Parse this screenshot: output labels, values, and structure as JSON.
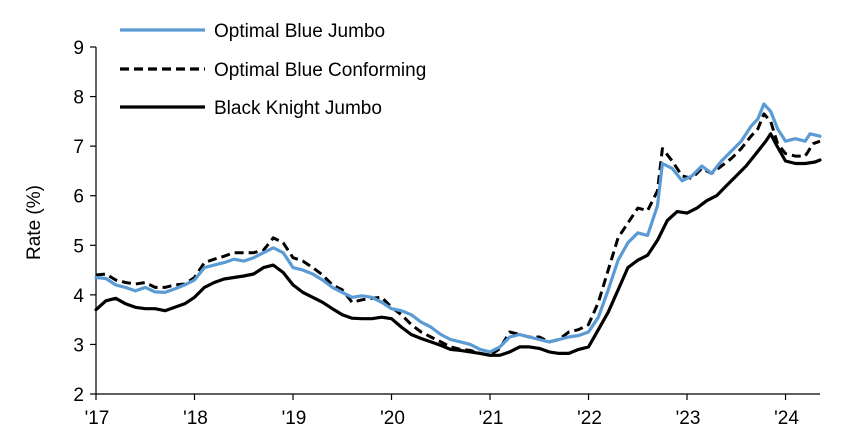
{
  "chart_data": {
    "type": "line",
    "title": "",
    "xlabel": "",
    "ylabel": "Rate (%)",
    "xlim": [
      2017.0,
      2024.35
    ],
    "ylim": [
      2,
      9
    ],
    "yticks": [
      2,
      3,
      4,
      5,
      6,
      7,
      8,
      9
    ],
    "xticks": [
      {
        "value": 2017,
        "label": "'17"
      },
      {
        "value": 2018,
        "label": "'18"
      },
      {
        "value": 2019,
        "label": "'19"
      },
      {
        "value": 2020,
        "label": "'20"
      },
      {
        "value": 2021,
        "label": "'21"
      },
      {
        "value": 2022,
        "label": "'22"
      },
      {
        "value": 2023,
        "label": "'23"
      },
      {
        "value": 2024,
        "label": "'24"
      }
    ],
    "grid": false,
    "legend_position": "top-left",
    "series": [
      {
        "name": "Optimal Blue Jumbo",
        "color": "#5b9bd5",
        "style": "solid",
        "points": [
          [
            2017.0,
            4.35
          ],
          [
            2017.1,
            4.33
          ],
          [
            2017.2,
            4.2
          ],
          [
            2017.3,
            4.15
          ],
          [
            2017.4,
            4.08
          ],
          [
            2017.5,
            4.15
          ],
          [
            2017.6,
            4.06
          ],
          [
            2017.7,
            4.05
          ],
          [
            2017.8,
            4.12
          ],
          [
            2017.9,
            4.2
          ],
          [
            2018.0,
            4.3
          ],
          [
            2018.1,
            4.55
          ],
          [
            2018.2,
            4.6
          ],
          [
            2018.3,
            4.65
          ],
          [
            2018.4,
            4.72
          ],
          [
            2018.5,
            4.68
          ],
          [
            2018.6,
            4.75
          ],
          [
            2018.7,
            4.85
          ],
          [
            2018.8,
            4.95
          ],
          [
            2018.9,
            4.85
          ],
          [
            2019.0,
            4.55
          ],
          [
            2019.1,
            4.5
          ],
          [
            2019.2,
            4.42
          ],
          [
            2019.3,
            4.3
          ],
          [
            2019.4,
            4.15
          ],
          [
            2019.5,
            4.05
          ],
          [
            2019.6,
            3.95
          ],
          [
            2019.7,
            3.98
          ],
          [
            2019.8,
            3.95
          ],
          [
            2019.9,
            3.85
          ],
          [
            2020.0,
            3.72
          ],
          [
            2020.1,
            3.68
          ],
          [
            2020.2,
            3.6
          ],
          [
            2020.3,
            3.45
          ],
          [
            2020.4,
            3.35
          ],
          [
            2020.5,
            3.2
          ],
          [
            2020.6,
            3.1
          ],
          [
            2020.7,
            3.05
          ],
          [
            2020.8,
            3.0
          ],
          [
            2020.9,
            2.9
          ],
          [
            2021.0,
            2.85
          ],
          [
            2021.1,
            2.95
          ],
          [
            2021.2,
            3.15
          ],
          [
            2021.3,
            3.2
          ],
          [
            2021.4,
            3.15
          ],
          [
            2021.5,
            3.1
          ],
          [
            2021.6,
            3.05
          ],
          [
            2021.7,
            3.1
          ],
          [
            2021.8,
            3.15
          ],
          [
            2021.9,
            3.18
          ],
          [
            2022.0,
            3.25
          ],
          [
            2022.1,
            3.55
          ],
          [
            2022.2,
            4.1
          ],
          [
            2022.3,
            4.7
          ],
          [
            2022.4,
            5.05
          ],
          [
            2022.5,
            5.25
          ],
          [
            2022.6,
            5.2
          ],
          [
            2022.7,
            5.8
          ],
          [
            2022.75,
            6.65
          ],
          [
            2022.85,
            6.55
          ],
          [
            2022.95,
            6.3
          ],
          [
            2023.05,
            6.4
          ],
          [
            2023.15,
            6.6
          ],
          [
            2023.25,
            6.45
          ],
          [
            2023.35,
            6.7
          ],
          [
            2023.45,
            6.9
          ],
          [
            2023.55,
            7.1
          ],
          [
            2023.65,
            7.4
          ],
          [
            2023.72,
            7.55
          ],
          [
            2023.78,
            7.85
          ],
          [
            2023.85,
            7.7
          ],
          [
            2023.92,
            7.35
          ],
          [
            2024.0,
            7.1
          ],
          [
            2024.1,
            7.15
          ],
          [
            2024.2,
            7.1
          ],
          [
            2024.25,
            7.25
          ],
          [
            2024.35,
            7.2
          ]
        ]
      },
      {
        "name": "Optimal Blue Conforming",
        "color": "#000000",
        "style": "dashed",
        "points": [
          [
            2017.0,
            4.4
          ],
          [
            2017.1,
            4.42
          ],
          [
            2017.2,
            4.3
          ],
          [
            2017.3,
            4.25
          ],
          [
            2017.4,
            4.22
          ],
          [
            2017.5,
            4.25
          ],
          [
            2017.6,
            4.15
          ],
          [
            2017.7,
            4.15
          ],
          [
            2017.8,
            4.2
          ],
          [
            2017.9,
            4.22
          ],
          [
            2018.0,
            4.35
          ],
          [
            2018.1,
            4.65
          ],
          [
            2018.2,
            4.72
          ],
          [
            2018.3,
            4.78
          ],
          [
            2018.4,
            4.85
          ],
          [
            2018.5,
            4.85
          ],
          [
            2018.6,
            4.85
          ],
          [
            2018.7,
            4.9
          ],
          [
            2018.8,
            5.15
          ],
          [
            2018.9,
            5.05
          ],
          [
            2019.0,
            4.75
          ],
          [
            2019.1,
            4.68
          ],
          [
            2019.2,
            4.55
          ],
          [
            2019.3,
            4.4
          ],
          [
            2019.4,
            4.2
          ],
          [
            2019.5,
            4.1
          ],
          [
            2019.6,
            3.85
          ],
          [
            2019.7,
            3.9
          ],
          [
            2019.8,
            3.93
          ],
          [
            2019.9,
            3.95
          ],
          [
            2020.0,
            3.75
          ],
          [
            2020.1,
            3.6
          ],
          [
            2020.2,
            3.4
          ],
          [
            2020.3,
            3.25
          ],
          [
            2020.4,
            3.15
          ],
          [
            2020.5,
            3.05
          ],
          [
            2020.6,
            2.95
          ],
          [
            2020.7,
            2.9
          ],
          [
            2020.8,
            2.88
          ],
          [
            2020.9,
            2.82
          ],
          [
            2021.0,
            2.78
          ],
          [
            2021.1,
            2.92
          ],
          [
            2021.2,
            3.25
          ],
          [
            2021.3,
            3.2
          ],
          [
            2021.4,
            3.15
          ],
          [
            2021.5,
            3.15
          ],
          [
            2021.6,
            3.05
          ],
          [
            2021.7,
            3.1
          ],
          [
            2021.8,
            3.25
          ],
          [
            2021.9,
            3.3
          ],
          [
            2022.0,
            3.4
          ],
          [
            2022.1,
            3.85
          ],
          [
            2022.2,
            4.5
          ],
          [
            2022.3,
            5.15
          ],
          [
            2022.4,
            5.45
          ],
          [
            2022.5,
            5.75
          ],
          [
            2022.6,
            5.7
          ],
          [
            2022.7,
            6.1
          ],
          [
            2022.75,
            6.95
          ],
          [
            2022.85,
            6.7
          ],
          [
            2022.95,
            6.4
          ],
          [
            2023.05,
            6.35
          ],
          [
            2023.15,
            6.55
          ],
          [
            2023.25,
            6.45
          ],
          [
            2023.35,
            6.6
          ],
          [
            2023.45,
            6.75
          ],
          [
            2023.55,
            6.95
          ],
          [
            2023.65,
            7.2
          ],
          [
            2023.72,
            7.35
          ],
          [
            2023.78,
            7.65
          ],
          [
            2023.85,
            7.5
          ],
          [
            2023.92,
            7.05
          ],
          [
            2024.0,
            6.85
          ],
          [
            2024.1,
            6.8
          ],
          [
            2024.2,
            6.8
          ],
          [
            2024.28,
            7.05
          ],
          [
            2024.35,
            7.1
          ]
        ]
      },
      {
        "name": "Black Knight Jumbo",
        "color": "#000000",
        "style": "solid",
        "points": [
          [
            2017.0,
            3.7
          ],
          [
            2017.1,
            3.88
          ],
          [
            2017.2,
            3.93
          ],
          [
            2017.3,
            3.82
          ],
          [
            2017.4,
            3.75
          ],
          [
            2017.5,
            3.72
          ],
          [
            2017.6,
            3.72
          ],
          [
            2017.7,
            3.68
          ],
          [
            2017.8,
            3.75
          ],
          [
            2017.9,
            3.82
          ],
          [
            2018.0,
            3.95
          ],
          [
            2018.1,
            4.15
          ],
          [
            2018.2,
            4.25
          ],
          [
            2018.3,
            4.32
          ],
          [
            2018.4,
            4.35
          ],
          [
            2018.5,
            4.38
          ],
          [
            2018.6,
            4.42
          ],
          [
            2018.7,
            4.55
          ],
          [
            2018.8,
            4.6
          ],
          [
            2018.9,
            4.45
          ],
          [
            2019.0,
            4.2
          ],
          [
            2019.1,
            4.05
          ],
          [
            2019.2,
            3.95
          ],
          [
            2019.3,
            3.85
          ],
          [
            2019.4,
            3.72
          ],
          [
            2019.5,
            3.6
          ],
          [
            2019.6,
            3.53
          ],
          [
            2019.7,
            3.52
          ],
          [
            2019.8,
            3.52
          ],
          [
            2019.9,
            3.55
          ],
          [
            2020.0,
            3.52
          ],
          [
            2020.1,
            3.35
          ],
          [
            2020.2,
            3.2
          ],
          [
            2020.3,
            3.12
          ],
          [
            2020.4,
            3.05
          ],
          [
            2020.5,
            2.98
          ],
          [
            2020.6,
            2.9
          ],
          [
            2020.7,
            2.88
          ],
          [
            2020.8,
            2.85
          ],
          [
            2020.9,
            2.82
          ],
          [
            2021.0,
            2.78
          ],
          [
            2021.1,
            2.78
          ],
          [
            2021.2,
            2.85
          ],
          [
            2021.3,
            2.95
          ],
          [
            2021.4,
            2.95
          ],
          [
            2021.5,
            2.92
          ],
          [
            2021.6,
            2.85
          ],
          [
            2021.7,
            2.82
          ],
          [
            2021.8,
            2.82
          ],
          [
            2021.9,
            2.9
          ],
          [
            2022.0,
            2.95
          ],
          [
            2022.1,
            3.3
          ],
          [
            2022.2,
            3.65
          ],
          [
            2022.3,
            4.1
          ],
          [
            2022.4,
            4.55
          ],
          [
            2022.5,
            4.7
          ],
          [
            2022.6,
            4.8
          ],
          [
            2022.7,
            5.1
          ],
          [
            2022.8,
            5.5
          ],
          [
            2022.9,
            5.68
          ],
          [
            2023.0,
            5.65
          ],
          [
            2023.1,
            5.75
          ],
          [
            2023.2,
            5.9
          ],
          [
            2023.3,
            6.0
          ],
          [
            2023.4,
            6.2
          ],
          [
            2023.5,
            6.4
          ],
          [
            2023.6,
            6.6
          ],
          [
            2023.7,
            6.85
          ],
          [
            2023.8,
            7.1
          ],
          [
            2023.85,
            7.25
          ],
          [
            2023.9,
            7.05
          ],
          [
            2024.0,
            6.7
          ],
          [
            2024.1,
            6.65
          ],
          [
            2024.2,
            6.65
          ],
          [
            2024.3,
            6.68
          ],
          [
            2024.35,
            6.72
          ]
        ]
      }
    ]
  }
}
